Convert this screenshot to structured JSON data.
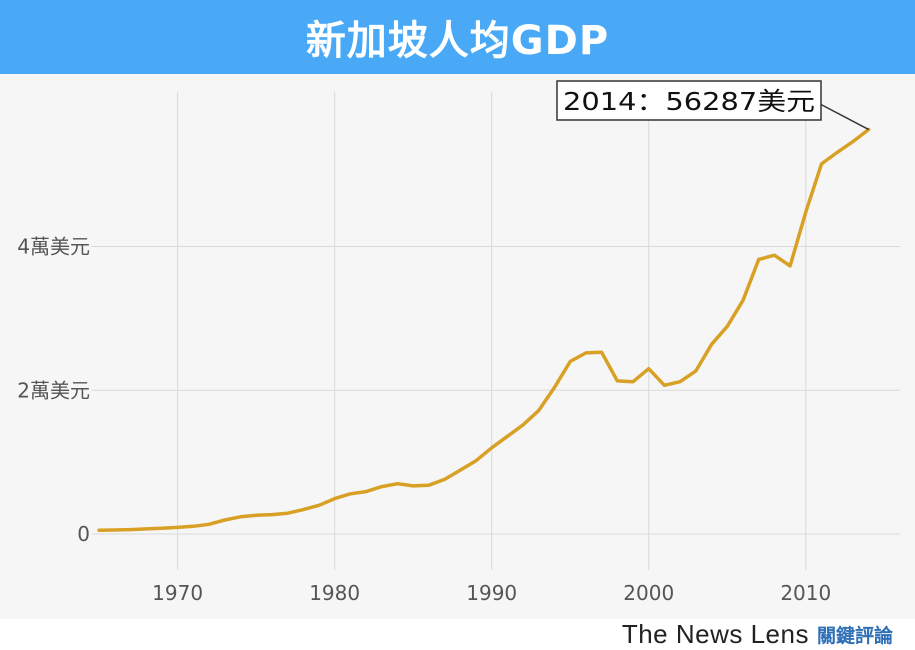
{
  "header": {
    "title": "新加坡人均GDP"
  },
  "brand": {
    "name": "The News Lens",
    "cjk": "關鍵評論"
  },
  "colors": {
    "title_bg": "#49a9f6",
    "line": "#d9a026",
    "plot_bg": "#f6f6f6",
    "grid": "#d9d9d9"
  },
  "chart_data": {
    "type": "line",
    "title": "新加坡人均GDP",
    "xlabel": "",
    "ylabel": "",
    "xlim": [
      1962,
      2016
    ],
    "ylim": [
      -2500,
      61500
    ],
    "x_ticks": [
      1970,
      1980,
      1990,
      2000,
      2010
    ],
    "x_tick_labels": [
      "1970",
      "1980",
      "1990",
      "2000",
      "2010"
    ],
    "y_ticks": [
      0,
      20000,
      40000
    ],
    "y_tick_labels": [
      "0",
      "2萬美元",
      "4萬美元"
    ],
    "grid": true,
    "series": [
      {
        "x": [
          1965,
          1966,
          1967,
          1968,
          1969,
          1970,
          1971,
          1972,
          1973,
          1974,
          1975,
          1976,
          1977,
          1978,
          1979,
          1980,
          1981,
          1982,
          1983,
          1984,
          1985,
          1986,
          1987,
          1988,
          1989,
          1990,
          1991,
          1992,
          1993,
          1994,
          1995,
          1996,
          1997,
          1998,
          1999,
          2000,
          2001,
          2002,
          2003,
          2004,
          2005,
          2006,
          2007,
          2008,
          2009,
          2010,
          2011,
          2012,
          2013,
          2014
        ],
        "y": [
          517,
          560,
          620,
          710,
          810,
          925,
          1080,
          1350,
          1950,
          2400,
          2600,
          2700,
          2900,
          3400,
          4000,
          4930,
          5600,
          5900,
          6600,
          7000,
          6700,
          6800,
          7600,
          8900,
          10200,
          12000,
          13600,
          15200,
          17200,
          20400,
          24000,
          25200,
          25300,
          21300,
          21200,
          23000,
          20700,
          21200,
          22700,
          26400,
          28900,
          32500,
          38200,
          38800,
          37300,
          44800,
          51500,
          53100,
          54600,
          56287
        ]
      }
    ],
    "annotation": {
      "text": "2014：56287美元",
      "x": 2014,
      "y": 56287
    }
  }
}
